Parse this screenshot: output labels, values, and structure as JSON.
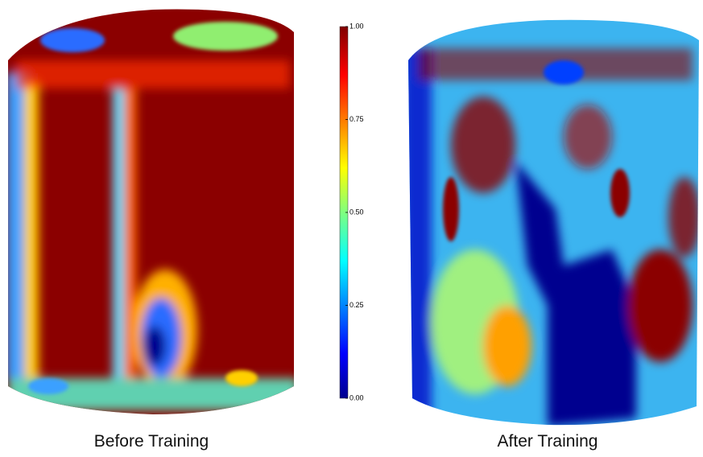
{
  "colorbar": {
    "lim": [
      0,
      1
    ],
    "ticks": [
      {
        "value": 0,
        "label": "0.00"
      },
      {
        "value": 0.25,
        "label": "0.25"
      },
      {
        "value": 0.5,
        "label": "0.50"
      },
      {
        "value": 0.75,
        "label": "0.75"
      },
      {
        "value": 1,
        "label": "1.00"
      }
    ]
  },
  "panels": [
    {
      "label": "Before Training"
    },
    {
      "label": "After Training"
    }
  ]
}
